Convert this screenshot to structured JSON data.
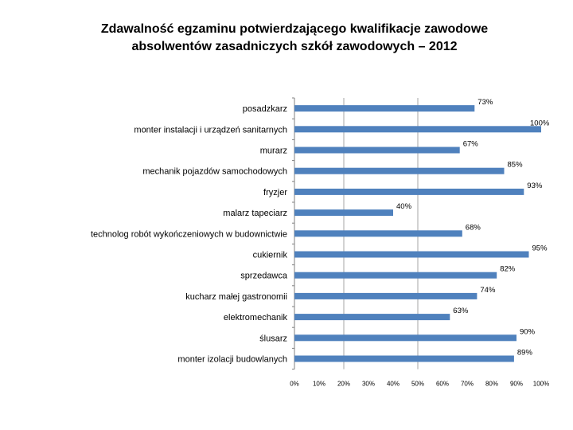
{
  "chart_data": {
    "type": "bar",
    "orientation": "horizontal",
    "title_line1": "Zdawalność egzaminu potwierdzającego kwalifikacje zawodowe",
    "title_line2": "absolwentów zasadniczych szkół zawodowych – 2012",
    "categories": [
      "posadzkarz",
      "monter instalacji i urządzeń sanitarnych",
      "murarz",
      "mechanik pojazdów samochodowych",
      "fryzjer",
      "malarz tapeciarz",
      "technolog robót wykończeniowych w budownictwie",
      "cukiernik",
      "sprzedawca",
      "kucharz małej gastronomii",
      "elektromechanik",
      "ślusarz",
      "monter izolacji budowlanych"
    ],
    "values": [
      73,
      100,
      67,
      85,
      93,
      40,
      68,
      95,
      82,
      74,
      63,
      90,
      89
    ],
    "value_labels": [
      "73%",
      "100%",
      "67%",
      "85%",
      "93%",
      "40%",
      "68%",
      "95%",
      "82%",
      "74%",
      "63%",
      "90%",
      "89%"
    ],
    "x_ticks": [
      "0%",
      "10%",
      "20%",
      "30%",
      "40%",
      "50%",
      "60%",
      "70%",
      "80%",
      "90%",
      "100%"
    ],
    "xlim": [
      0,
      100
    ],
    "gridlines_at": [
      20,
      50
    ],
    "xlabel": "",
    "ylabel": "",
    "bar_color": "#4f81bd"
  }
}
